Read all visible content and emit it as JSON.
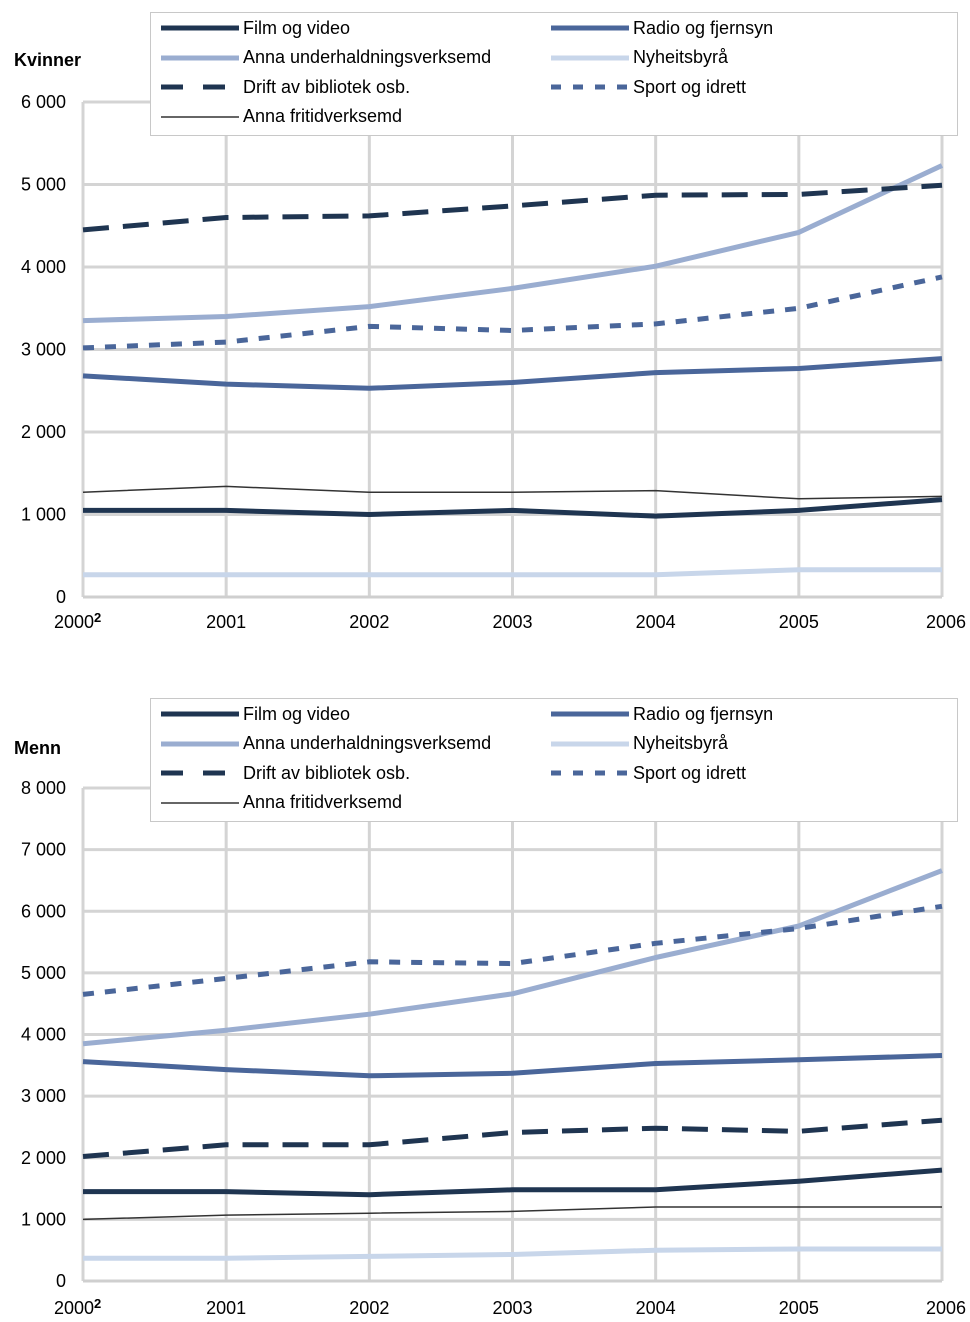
{
  "chart_data": [
    {
      "type": "line",
      "ylabel": "Kvinner",
      "x": [
        "2000",
        "2001",
        "2002",
        "2003",
        "2004",
        "2005",
        "2006"
      ],
      "first_x_footnote": "2",
      "ylim": [
        0,
        6000
      ],
      "yticks": [
        "0",
        "1 000",
        "2 000",
        "3 000",
        "4 000",
        "5 000",
        "6 000"
      ],
      "grid": true,
      "legend_position": "top",
      "series": [
        {
          "name": "Film og video",
          "style": "solid-thick",
          "color": "#1f3551",
          "values": [
            1050,
            1050,
            1000,
            1050,
            980,
            1050,
            1180
          ]
        },
        {
          "name": "Radio og fjernsyn",
          "style": "solid-thick",
          "color": "#4a669a",
          "values": [
            2680,
            2580,
            2530,
            2600,
            2720,
            2770,
            2890
          ]
        },
        {
          "name": "Anna underhaldningsverksemd",
          "style": "solid-thick",
          "color": "#9aadd0",
          "values": [
            3350,
            3400,
            3520,
            3740,
            4010,
            4420,
            5230
          ]
        },
        {
          "name": "Nyheitsbyrå",
          "style": "solid-thick",
          "color": "#c8d6ea",
          "values": [
            270,
            270,
            270,
            270,
            270,
            330,
            330
          ]
        },
        {
          "name": "Drift av bibliotek osb.",
          "style": "dashed",
          "color": "#1f3551",
          "values": [
            4450,
            4600,
            4620,
            4740,
            4870,
            4880,
            4990
          ]
        },
        {
          "name": "Sport og  idrett",
          "style": "dotted",
          "color": "#4a669a",
          "values": [
            3020,
            3090,
            3280,
            3230,
            3310,
            3500,
            3880
          ]
        },
        {
          "name": "Anna fritidverksemd",
          "style": "thin",
          "color": "#333333",
          "values": [
            1270,
            1340,
            1270,
            1270,
            1290,
            1190,
            1220
          ]
        }
      ]
    },
    {
      "type": "line",
      "ylabel": "Menn",
      "x": [
        "2000",
        "2001",
        "2002",
        "2003",
        "2004",
        "2005",
        "2006"
      ],
      "first_x_footnote": "2",
      "ylim": [
        0,
        8000
      ],
      "yticks": [
        "0",
        "1 000",
        "2 000",
        "3 000",
        "4 000",
        "5 000",
        "6 000",
        "7 000",
        "8 000"
      ],
      "grid": true,
      "legend_position": "top",
      "series": [
        {
          "name": "Film og video",
          "style": "solid-thick",
          "color": "#1f3551",
          "values": [
            1450,
            1450,
            1400,
            1480,
            1480,
            1620,
            1800
          ]
        },
        {
          "name": "Radio og fjernsyn",
          "style": "solid-thick",
          "color": "#4a669a",
          "values": [
            3560,
            3430,
            3330,
            3370,
            3530,
            3590,
            3660
          ]
        },
        {
          "name": "Anna underhaldningsverksemd",
          "style": "solid-thick",
          "color": "#9aadd0",
          "values": [
            3850,
            4070,
            4330,
            4660,
            5250,
            5760,
            6660
          ]
        },
        {
          "name": "Nyheitsbyrå",
          "style": "solid-thick",
          "color": "#c8d6ea",
          "values": [
            370,
            370,
            400,
            430,
            500,
            520,
            520
          ]
        },
        {
          "name": "Drift av bibliotek osb.",
          "style": "dashed",
          "color": "#1f3551",
          "values": [
            2020,
            2210,
            2210,
            2410,
            2480,
            2430,
            2610
          ]
        },
        {
          "name": "Sport og  idrett",
          "style": "dotted",
          "color": "#4a669a",
          "values": [
            4650,
            4910,
            5180,
            5150,
            5480,
            5720,
            6080
          ]
        },
        {
          "name": "Anna fritidverksemd",
          "style": "thin",
          "color": "#333333",
          "values": [
            1000,
            1070,
            1100,
            1130,
            1200,
            1200,
            1200
          ]
        }
      ]
    }
  ]
}
